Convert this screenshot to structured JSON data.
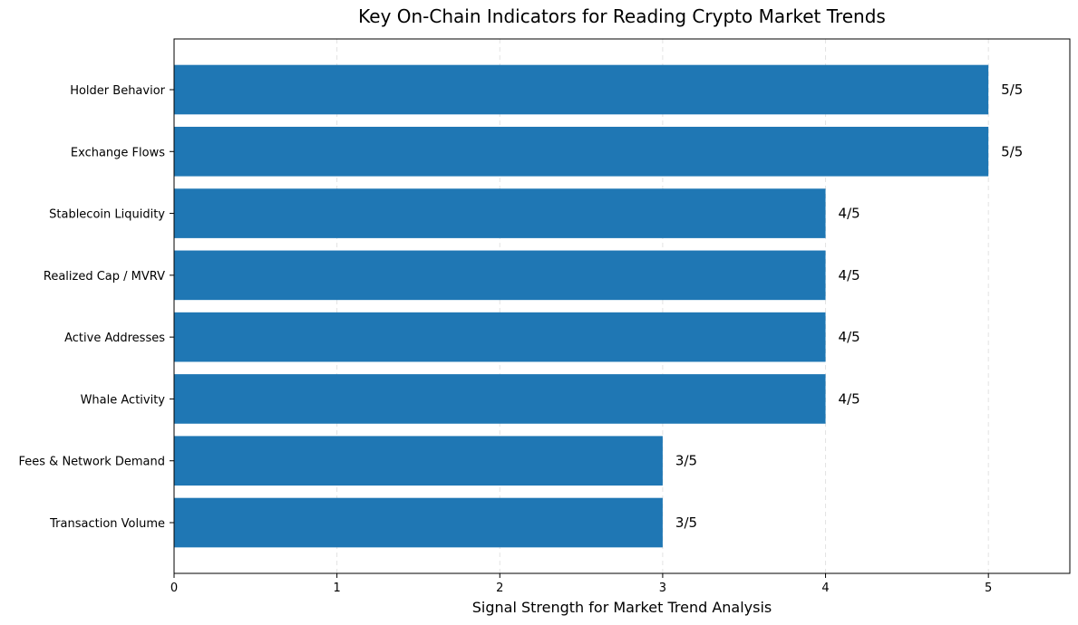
{
  "chart_data": {
    "type": "bar",
    "orientation": "horizontal",
    "title": "Key On-Chain Indicators for Reading Crypto Market Trends",
    "xlabel": "Signal Strength for Market Trend Analysis",
    "ylabel": "",
    "categories": [
      "Holder Behavior",
      "Exchange Flows",
      "Stablecoin Liquidity",
      "Realized Cap / MVRV",
      "Active Addresses",
      "Whale Activity",
      "Fees & Network Demand",
      "Transaction Volume"
    ],
    "values": [
      5,
      5,
      4,
      4,
      4,
      4,
      3,
      3
    ],
    "data_labels": [
      "5/5",
      "5/5",
      "4/5",
      "4/5",
      "4/5",
      "4/5",
      "3/5",
      "3/5"
    ],
    "xlim": [
      0,
      5.5
    ],
    "xticks": [
      0,
      1,
      2,
      3,
      4,
      5
    ],
    "xtick_labels": [
      "0",
      "1",
      "2",
      "3",
      "4",
      "5"
    ],
    "grid": "x-axis dashed",
    "bar_color": "#1f77b4"
  }
}
